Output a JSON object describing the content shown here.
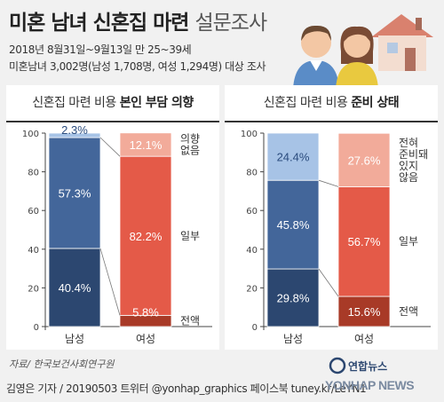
{
  "header": {
    "title_main": "미혼 남녀 신혼집 마련",
    "title_sub": "설문조사",
    "info_line1": "2018년 8월31일~9월13일 만 25~39세",
    "info_line2": "미혼남녀 3,002명(남성 1,708명, 여성 1,294명) 대상 조사"
  },
  "panels": {
    "left": {
      "heading_plain": "신혼집 마련 비용 ",
      "heading_bold": "본인 부담 의향"
    },
    "right": {
      "heading_plain": "신혼집 마련 비용 ",
      "heading_bold": "준비 상태"
    }
  },
  "chart_data": [
    {
      "type": "bar",
      "stacked": true,
      "title": "신혼집 마련 비용 본인 부담 의향",
      "categories": [
        "남성",
        "여성"
      ],
      "yticks": [
        0,
        20,
        40,
        60,
        80,
        100
      ],
      "ylim": [
        0,
        100
      ],
      "series": [
        {
          "name": "전액",
          "values": [
            40.4,
            5.8
          ],
          "colors": [
            "#2c4770",
            "#a83a27"
          ]
        },
        {
          "name": "일부",
          "values": [
            57.3,
            82.2
          ],
          "colors": [
            "#43669a",
            "#e45a48"
          ]
        },
        {
          "name": "의향 없음",
          "values": [
            2.3,
            12.1
          ],
          "colors": [
            "#a7c3e6",
            "#f2ab9a"
          ]
        }
      ]
    },
    {
      "type": "bar",
      "stacked": true,
      "title": "신혼집 마련 비용 준비 상태",
      "categories": [
        "남성",
        "여성"
      ],
      "yticks": [
        0,
        20,
        40,
        60,
        80,
        100
      ],
      "ylim": [
        0,
        100
      ],
      "series": [
        {
          "name": "전액",
          "values": [
            29.8,
            15.6
          ],
          "colors": [
            "#2c4770",
            "#a83a27"
          ]
        },
        {
          "name": "일부",
          "values": [
            45.8,
            56.7
          ],
          "colors": [
            "#43669a",
            "#e45a48"
          ]
        },
        {
          "name": "전혀 준비돼 있지 않음",
          "values": [
            24.4,
            27.6
          ],
          "colors": [
            "#a7c3e6",
            "#f2ab9a"
          ]
        }
      ]
    }
  ],
  "footer": {
    "source": "자료/ 한국보건사회연구원",
    "credit": "김영은 기자 / 20190503  트위터 @yonhap_graphics  페이스북 tuney.kr/LeYN1",
    "logo_text": "YONHAP NEWS",
    "logo_korean": "연합뉴스"
  }
}
